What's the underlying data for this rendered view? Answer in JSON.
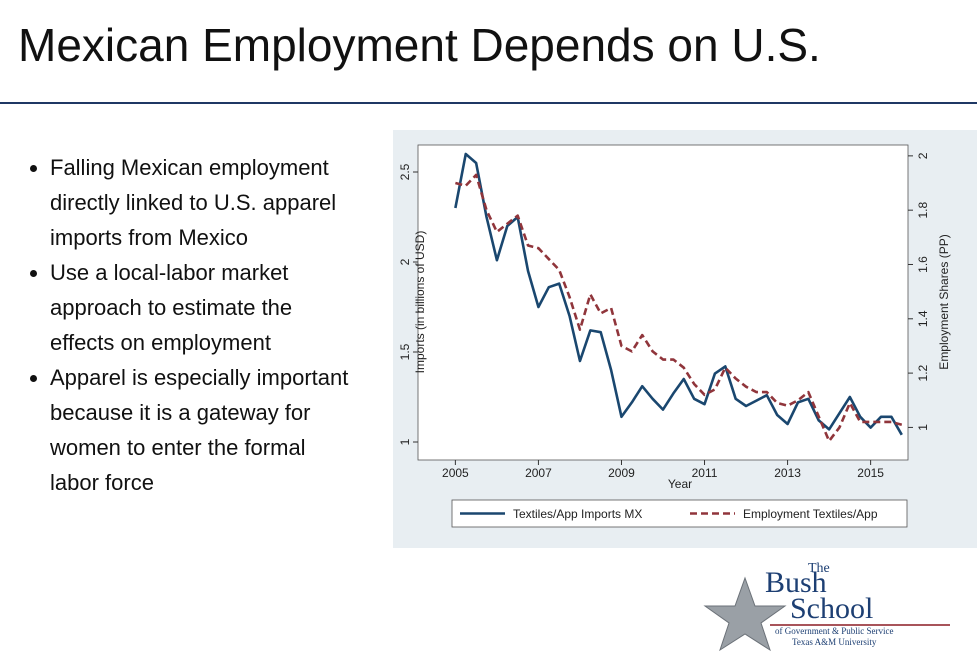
{
  "header": {
    "title": "Mexican Employment Depends on U.S."
  },
  "bullets": [
    "Falling Mexican employment directly linked to U.S. apparel imports from Mexico",
    "Use a local-labor market approach to estimate the effects on employment",
    "Apparel is especially important because it is a gateway for women to enter the formal labor force"
  ],
  "logo": {
    "the": "The",
    "bush": "Bush",
    "school": "School",
    "line1": "of Government & Public Service",
    "line2": "Texas A&M University"
  },
  "chart_data": {
    "type": "line",
    "x_label": "Year",
    "y_label": "Imports (in billions of USD)",
    "y2_label": "Employment Shares (PP)",
    "x": [
      2005,
      2005.25,
      2005.5,
      2005.75,
      2006,
      2006.25,
      2006.5,
      2006.75,
      2007,
      2007.25,
      2007.5,
      2007.75,
      2008,
      2008.25,
      2008.5,
      2008.75,
      2009,
      2009.25,
      2009.5,
      2009.75,
      2010,
      2010.25,
      2010.5,
      2010.75,
      2011,
      2011.25,
      2011.5,
      2011.75,
      2012,
      2012.25,
      2012.5,
      2012.75,
      2013,
      2013.25,
      2013.5,
      2013.75,
      2014,
      2014.25,
      2014.5,
      2014.75,
      2015,
      2015.25,
      2015.5,
      2015.75
    ],
    "series": [
      {
        "name": "Textiles/App Imports MX",
        "color": "#1a476f",
        "axis": "y",
        "dash": false,
        "values": [
          2.3,
          2.6,
          2.55,
          2.25,
          2.01,
          2.2,
          2.25,
          1.95,
          1.75,
          1.86,
          1.88,
          1.7,
          1.45,
          1.62,
          1.61,
          1.4,
          1.14,
          1.22,
          1.31,
          1.24,
          1.18,
          1.27,
          1.35,
          1.24,
          1.21,
          1.38,
          1.42,
          1.24,
          1.2,
          1.23,
          1.26,
          1.15,
          1.1,
          1.22,
          1.24,
          1.12,
          1.07,
          1.16,
          1.25,
          1.14,
          1.08,
          1.14,
          1.14,
          1.04
        ]
      },
      {
        "name": "Employment Textiles/App",
        "color": "#90353b",
        "axis": "y2",
        "dash": true,
        "values": [
          1.9,
          1.89,
          1.93,
          1.8,
          1.72,
          1.75,
          1.78,
          1.67,
          1.66,
          1.62,
          1.58,
          1.48,
          1.36,
          1.49,
          1.42,
          1.44,
          1.3,
          1.28,
          1.34,
          1.28,
          1.25,
          1.25,
          1.22,
          1.16,
          1.12,
          1.14,
          1.22,
          1.18,
          1.15,
          1.13,
          1.13,
          1.09,
          1.08,
          1.1,
          1.13,
          1.04,
          0.95,
          1.0,
          1.09,
          1.02,
          1.02,
          1.02,
          1.02,
          1.01
        ]
      }
    ],
    "xlim": [
      2004.1,
      2015.9
    ],
    "xticks": [
      2005,
      2007,
      2009,
      2011,
      2013,
      2015
    ],
    "ylim": [
      0.9,
      2.65
    ],
    "yticks": [
      1,
      1.5,
      2,
      2.5
    ],
    "y2lim": [
      0.88,
      2.04
    ],
    "y2ticks": [
      1,
      1.2,
      1.4,
      1.6,
      1.8,
      2
    ],
    "grid": false,
    "legend": "bottom"
  }
}
